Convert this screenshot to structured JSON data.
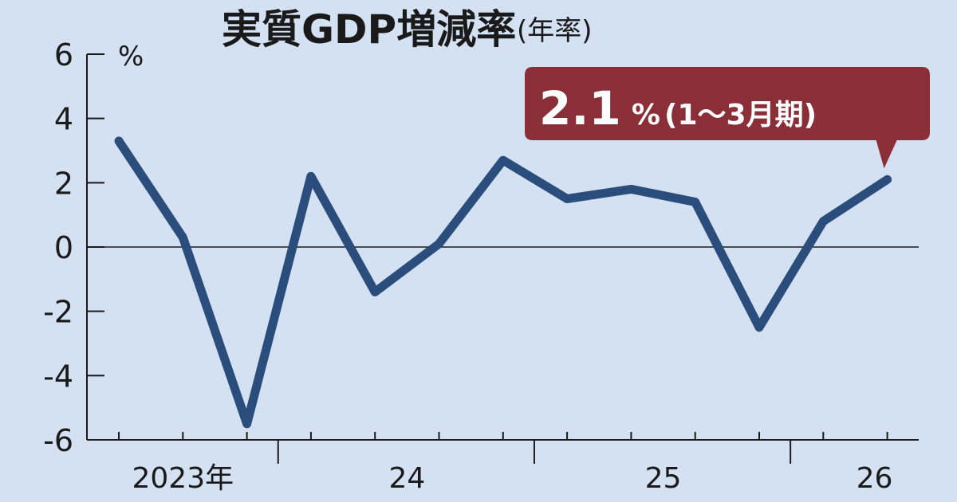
{
  "chart_data": {
    "type": "line",
    "title": "実質GDP増減率",
    "title_suffix": "(年率)",
    "unit": "%",
    "ylim": [
      -6,
      6
    ],
    "yticks": [
      "6",
      "4",
      "2",
      "0",
      "-2",
      "-4",
      "-6"
    ],
    "x_labels": [
      "2023年",
      "24",
      "25",
      "26"
    ],
    "series": [
      {
        "values": [
          3.3,
          0.3,
          -5.5,
          2.2,
          -1.4,
          0.1,
          2.7,
          1.5,
          1.8,
          1.4,
          -2.5,
          0.8,
          2.1
        ]
      }
    ],
    "callout": {
      "value": "2.1",
      "unit": "%",
      "period": "(1〜3月期)"
    },
    "grid": false
  },
  "colors": {
    "background": "#d3e1f3",
    "line": "#2a4d7c",
    "callout": "#8a2e38",
    "axis": "#1a1a1a"
  }
}
